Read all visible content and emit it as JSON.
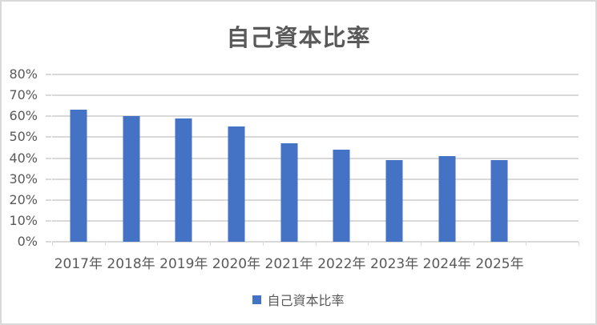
{
  "chart_data": {
    "type": "bar",
    "title": "自己資本比率",
    "categories": [
      "2017年",
      "2018年",
      "2019年",
      "2020年",
      "2021年",
      "2022年",
      "2023年",
      "2024年",
      "2025年"
    ],
    "series": [
      {
        "name": "自己資本比率",
        "values": [
          63,
          60,
          59,
          55,
          47,
          44,
          39,
          41,
          39
        ]
      }
    ],
    "value_unit": "%",
    "ylim": [
      0,
      80
    ],
    "ytick_step": 10,
    "ytick_labels": [
      "0%",
      "10%",
      "20%",
      "30%",
      "40%",
      "50%",
      "60%",
      "70%",
      "80%"
    ],
    "grid": true,
    "legend_position": "bottom",
    "colors": {
      "bar": "#4472C4",
      "gridline": "#D9D9D9",
      "text": "#595959",
      "background": "#FFFFFF",
      "border": "#D9D9D9"
    }
  }
}
